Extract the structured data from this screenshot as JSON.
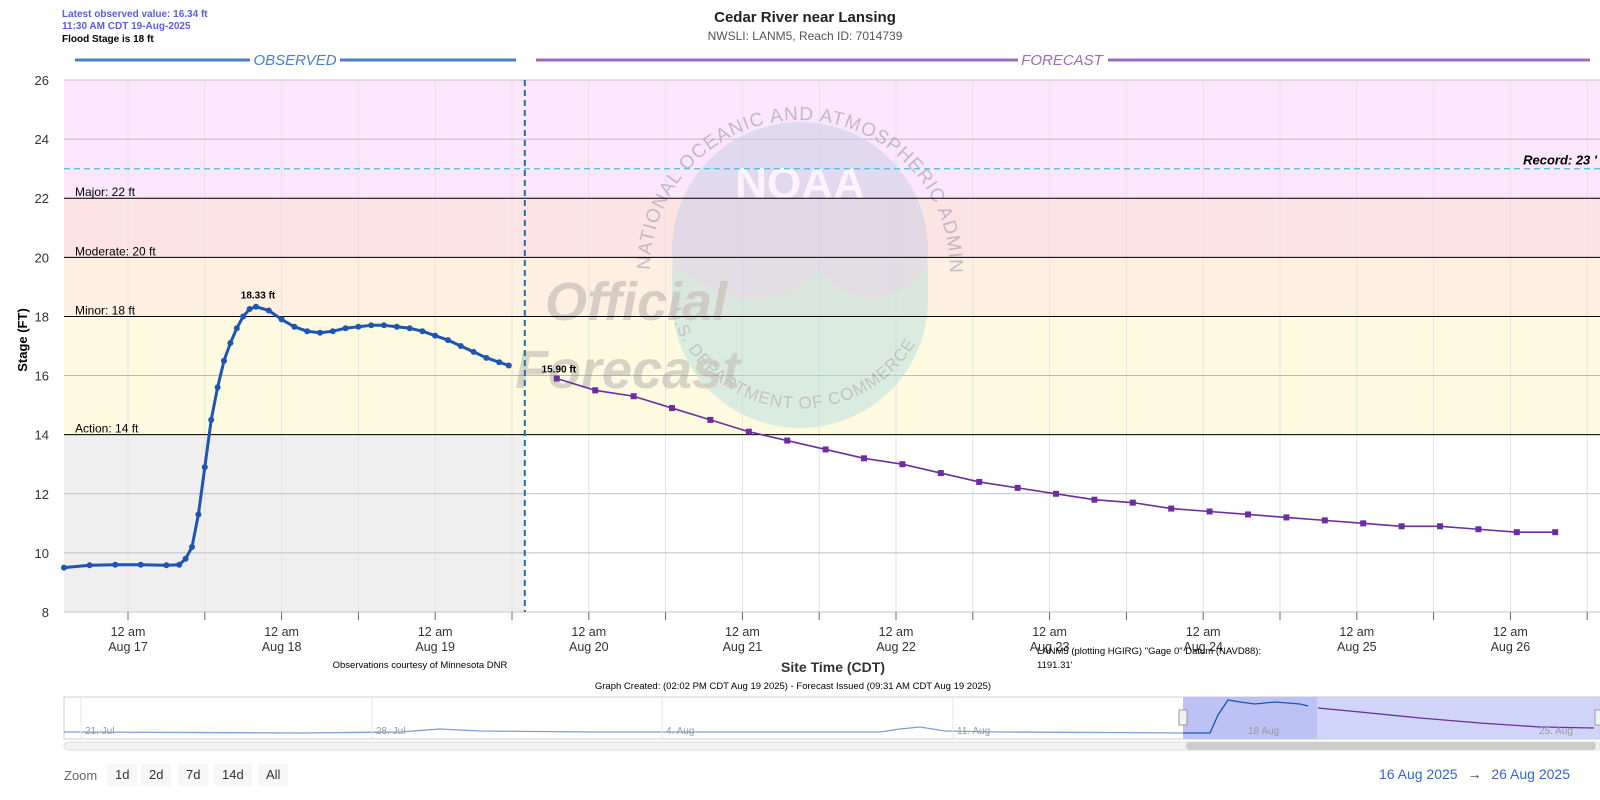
{
  "header": {
    "latest_value": "Latest observed value: 16.34 ft",
    "latest_time": "11:30 AM CDT 19-Aug-2025",
    "flood_stage": "Flood Stage is 18 ft"
  },
  "footer": {
    "obs_credit": "Observations courtesy of Minnesota DNR",
    "graph_created": "Graph Created: (02:02 PM CDT Aug 19 2025) - Forecast Issued (09:31 AM CDT Aug 19 2025)",
    "datum_line1": "LANM5 (plotting HGIRG) \"Gage 0\" Datum (NAVD88):",
    "datum_line2": "1191.31'"
  },
  "watermark": {
    "official": "Official",
    "forecast": "Forecast",
    "noaa": "NOAA",
    "ring_top": "NATIONAL OCEANIC AND ATMOSPHERIC ADMINISTRATION",
    "ring_bottom": "U.S. DEPARTMENT OF COMMERCE"
  },
  "navigator": {
    "labels": [
      "21. Jul",
      "28. Jul",
      "4. Aug",
      "11. Aug",
      "18 Aug",
      "25. Aug"
    ]
  },
  "zoom": {
    "label": "Zoom",
    "buttons": [
      "1d",
      "2d",
      "7d",
      "14d",
      "All"
    ],
    "range_from": "16 Aug 2025",
    "arrow": "→",
    "range_to": "26 Aug 2025"
  },
  "colors": {
    "observed": "#1f55b0",
    "forecast": "#6b2d9f",
    "observed_header": "#4a7fc7",
    "forecast_header": "#9b6bbf",
    "record": "#5bc0de",
    "zone_record": "#fbe6fb",
    "zone_major": "#fde3e4",
    "zone_moderate": "#fdf0e0",
    "zone_minor": "#fdfae0",
    "zone_normal": "#efefef"
  },
  "chart_data": {
    "type": "line",
    "title": "Cedar River near Lansing",
    "subtitle": "NWSLI: LANM5, Reach ID: 7014739",
    "xlabel": "Site Time (CDT)",
    "ylabel": "Stage (FT)",
    "ylim": [
      8,
      26
    ],
    "yticks": [
      8,
      10,
      12,
      14,
      16,
      18,
      20,
      22,
      24,
      26
    ],
    "xlim": [
      "2025-08-16T14:00",
      "2025-08-26T14:00"
    ],
    "xticks": [
      {
        "t": "2025-08-17T00:00",
        "line1": "12 am",
        "line2": "Aug 17"
      },
      {
        "t": "2025-08-18T00:00",
        "line1": "12 am",
        "line2": "Aug 18"
      },
      {
        "t": "2025-08-19T00:00",
        "line1": "12 am",
        "line2": "Aug 19"
      },
      {
        "t": "2025-08-20T00:00",
        "line1": "12 am",
        "line2": "Aug 20"
      },
      {
        "t": "2025-08-21T00:00",
        "line1": "12 am",
        "line2": "Aug 21"
      },
      {
        "t": "2025-08-22T00:00",
        "line1": "12 am",
        "line2": "Aug 22"
      },
      {
        "t": "2025-08-23T00:00",
        "line1": "12 am",
        "line2": "Aug 23"
      },
      {
        "t": "2025-08-24T00:00",
        "line1": "12 am",
        "line2": "Aug 24"
      },
      {
        "t": "2025-08-25T00:00",
        "line1": "12 am",
        "line2": "Aug 25"
      },
      {
        "t": "2025-08-26T00:00",
        "line1": "12 am",
        "line2": "Aug 26"
      }
    ],
    "section_labels": {
      "observed": "OBSERVED",
      "forecast": "FORECAST"
    },
    "now": "2025-08-19T14:00",
    "thresholds": [
      {
        "label": "Action: 14 ft",
        "value": 14
      },
      {
        "label": "Minor: 18 ft",
        "value": 18
      },
      {
        "label": "Moderate: 20 ft",
        "value": 20
      },
      {
        "label": "Major: 22 ft",
        "value": 22
      }
    ],
    "record": {
      "label": "Record: 23 '",
      "value": 23
    },
    "series": [
      {
        "name": "Observed",
        "peak_label": "18.33 ft",
        "points": [
          [
            "2025-08-16T14:00",
            9.5
          ],
          [
            "2025-08-16T18:00",
            9.58
          ],
          [
            "2025-08-16T22:00",
            9.6
          ],
          [
            "2025-08-17T02:00",
            9.6
          ],
          [
            "2025-08-17T06:00",
            9.58
          ],
          [
            "2025-08-17T08:00",
            9.6
          ],
          [
            "2025-08-17T09:00",
            9.8
          ],
          [
            "2025-08-17T10:00",
            10.2
          ],
          [
            "2025-08-17T11:00",
            11.3
          ],
          [
            "2025-08-17T12:00",
            12.9
          ],
          [
            "2025-08-17T13:00",
            14.5
          ],
          [
            "2025-08-17T14:00",
            15.6
          ],
          [
            "2025-08-17T15:00",
            16.5
          ],
          [
            "2025-08-17T16:00",
            17.1
          ],
          [
            "2025-08-17T17:00",
            17.6
          ],
          [
            "2025-08-17T18:00",
            18.0
          ],
          [
            "2025-08-17T19:00",
            18.25
          ],
          [
            "2025-08-17T20:00",
            18.33
          ],
          [
            "2025-08-17T22:00",
            18.2
          ],
          [
            "2025-08-18T00:00",
            17.9
          ],
          [
            "2025-08-18T02:00",
            17.65
          ],
          [
            "2025-08-18T04:00",
            17.5
          ],
          [
            "2025-08-18T06:00",
            17.45
          ],
          [
            "2025-08-18T08:00",
            17.5
          ],
          [
            "2025-08-18T10:00",
            17.6
          ],
          [
            "2025-08-18T12:00",
            17.65
          ],
          [
            "2025-08-18T14:00",
            17.7
          ],
          [
            "2025-08-18T16:00",
            17.7
          ],
          [
            "2025-08-18T18:00",
            17.65
          ],
          [
            "2025-08-18T20:00",
            17.6
          ],
          [
            "2025-08-18T22:00",
            17.5
          ],
          [
            "2025-08-19T00:00",
            17.35
          ],
          [
            "2025-08-19T02:00",
            17.2
          ],
          [
            "2025-08-19T04:00",
            17.0
          ],
          [
            "2025-08-19T06:00",
            16.8
          ],
          [
            "2025-08-19T08:00",
            16.6
          ],
          [
            "2025-08-19T10:00",
            16.45
          ],
          [
            "2025-08-19T11:30",
            16.34
          ]
        ]
      },
      {
        "name": "Forecast",
        "start_label": "15.90 ft",
        "points": [
          [
            "2025-08-19T19:00",
            15.9
          ],
          [
            "2025-08-20T01:00",
            15.5
          ],
          [
            "2025-08-20T07:00",
            15.3
          ],
          [
            "2025-08-20T13:00",
            14.9
          ],
          [
            "2025-08-20T19:00",
            14.5
          ],
          [
            "2025-08-21T01:00",
            14.1
          ],
          [
            "2025-08-21T07:00",
            13.8
          ],
          [
            "2025-08-21T13:00",
            13.5
          ],
          [
            "2025-08-21T19:00",
            13.2
          ],
          [
            "2025-08-22T01:00",
            13.0
          ],
          [
            "2025-08-22T07:00",
            12.7
          ],
          [
            "2025-08-22T13:00",
            12.4
          ],
          [
            "2025-08-22T19:00",
            12.2
          ],
          [
            "2025-08-23T01:00",
            12.0
          ],
          [
            "2025-08-23T07:00",
            11.8
          ],
          [
            "2025-08-23T13:00",
            11.7
          ],
          [
            "2025-08-23T19:00",
            11.5
          ],
          [
            "2025-08-24T01:00",
            11.4
          ],
          [
            "2025-08-24T07:00",
            11.3
          ],
          [
            "2025-08-24T13:00",
            11.2
          ],
          [
            "2025-08-24T19:00",
            11.1
          ],
          [
            "2025-08-25T01:00",
            11.0
          ],
          [
            "2025-08-25T07:00",
            10.9
          ],
          [
            "2025-08-25T13:00",
            10.9
          ],
          [
            "2025-08-25T19:00",
            10.8
          ],
          [
            "2025-08-26T01:00",
            10.7
          ],
          [
            "2025-08-26T07:00",
            10.7
          ]
        ]
      }
    ],
    "grid": true,
    "legend": "none"
  }
}
